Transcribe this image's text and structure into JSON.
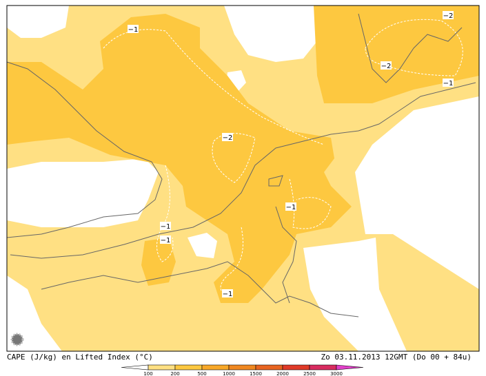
{
  "map": {
    "contour_labels": [
      "−1",
      "−2",
      "−2",
      "−1",
      "−2",
      "−1",
      "−1",
      "−1",
      "−1"
    ],
    "caption": "CAPE (J/kg) en Lifted Index (°C)",
    "valid_time": "Zo 03.11.2013 12GMT (Do 00 + 84u)",
    "colorbar": {
      "ticks": [
        100,
        200,
        500,
        1000,
        1500,
        2000,
        2500,
        3000
      ],
      "colors": [
        "#ffffff",
        "#ffe083",
        "#fdc840",
        "#f8a828",
        "#f08820",
        "#e86420",
        "#e03a28",
        "#d82c60",
        "#e040c8"
      ]
    }
  }
}
